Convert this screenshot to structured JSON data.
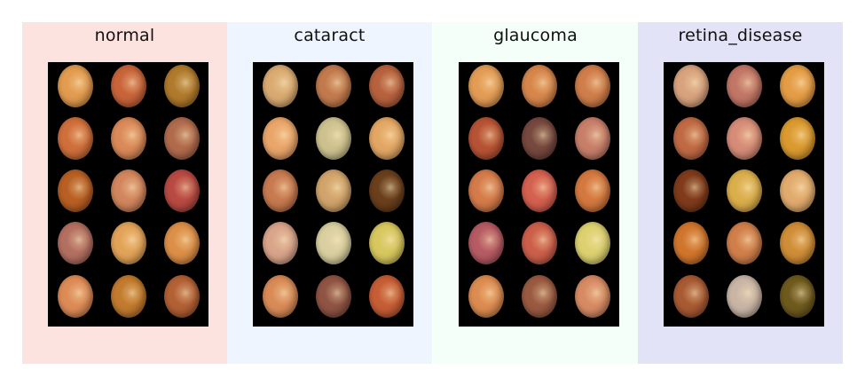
{
  "colors": {
    "background": "#ffffff",
    "grid_background": "#000000"
  },
  "panels": [
    {
      "title": "normal",
      "bg": "#fde3df",
      "rows": [
        [
          "#e29b4f",
          "#c9643a",
          "#b07a2c"
        ],
        [
          "#cf6f3b",
          "#da8a58",
          "#b06b4c"
        ],
        [
          "#b85f24",
          "#d2865e",
          "#b94a43"
        ],
        [
          "#b37061",
          "#e2a359",
          "#dc8f48"
        ],
        [
          "#dd8b56",
          "#c27a2e",
          "#b36035"
        ]
      ]
    },
    {
      "title": "cataract",
      "bg": "#eef5ff",
      "rows": [
        [
          "#d9ab72",
          "#c27a4d",
          "#b7613e"
        ],
        [
          "#e9a56a",
          "#cdc28f",
          "#e2a764"
        ],
        [
          "#c7794f",
          "#d1a46b",
          "#6a3f1c"
        ],
        [
          "#d8a48a",
          "#d9cfa0",
          "#d7c75e"
        ],
        [
          "#d98b57",
          "#8f5443",
          "#c65d35"
        ]
      ]
    },
    {
      "title": "glaucoma",
      "bg": "#f3fff8",
      "rows": [
        [
          "#e39c56",
          "#d6864b",
          "#cf7d4a"
        ],
        [
          "#b75335",
          "#76483f",
          "#c77f6a"
        ],
        [
          "#d47b4a",
          "#d4604f",
          "#d4783f"
        ],
        [
          "#b65b63",
          "#cb5f4a",
          "#dcd170"
        ],
        [
          "#dc8c50",
          "#9a5a41",
          "#d78b64"
        ]
      ]
    },
    {
      "title": "retina_disease",
      "bg": "#e2e3f7",
      "rows": [
        [
          "#d8a27e",
          "#c17666",
          "#e49c45"
        ],
        [
          "#c06a44",
          "#d68c77",
          "#da9a2f"
        ],
        [
          "#7f3b1b",
          "#dbae4c",
          "#e2ab6e"
        ],
        [
          "#d0752d",
          "#d07f4a",
          "#cf8d37"
        ],
        [
          "#a85a33",
          "#c9b5a6",
          "#6f5a1e"
        ]
      ]
    }
  ]
}
